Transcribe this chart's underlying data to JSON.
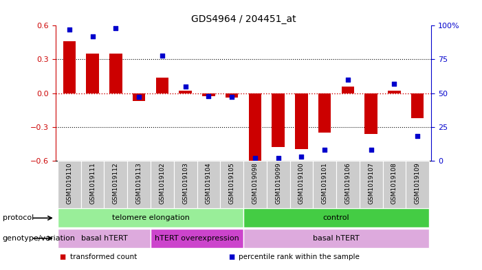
{
  "title": "GDS4964 / 204451_at",
  "samples": [
    "GSM1019110",
    "GSM1019111",
    "GSM1019112",
    "GSM1019113",
    "GSM1019102",
    "GSM1019103",
    "GSM1019104",
    "GSM1019105",
    "GSM1019098",
    "GSM1019099",
    "GSM1019100",
    "GSM1019101",
    "GSM1019106",
    "GSM1019107",
    "GSM1019108",
    "GSM1019109"
  ],
  "bar_values": [
    0.46,
    0.35,
    0.35,
    -0.07,
    0.14,
    0.02,
    -0.03,
    -0.04,
    -0.6,
    -0.48,
    -0.5,
    -0.35,
    0.06,
    -0.36,
    0.02,
    -0.22
  ],
  "percentile_values": [
    97,
    92,
    98,
    47,
    78,
    55,
    48,
    47,
    2,
    2,
    3,
    8,
    60,
    8,
    57,
    18
  ],
  "ylim_left": [
    -0.6,
    0.6
  ],
  "ylim_right": [
    0,
    100
  ],
  "yticks_left": [
    -0.6,
    -0.3,
    0.0,
    0.3,
    0.6
  ],
  "yticks_right": [
    0,
    25,
    50,
    75,
    100
  ],
  "ytick_labels_right": [
    "0",
    "25",
    "50",
    "75",
    "100%"
  ],
  "bar_color": "#cc0000",
  "percentile_color": "#0000cc",
  "zero_line_color": "#cc0000",
  "grid_color": "#000000",
  "protocol_groups": [
    {
      "label": "telomere elongation",
      "start": 0,
      "end": 7,
      "color": "#99ee99"
    },
    {
      "label": "control",
      "start": 8,
      "end": 15,
      "color": "#44cc44"
    }
  ],
  "genotype_groups": [
    {
      "label": "basal hTERT",
      "start": 0,
      "end": 3,
      "color": "#ddaadd"
    },
    {
      "label": "hTERT overexpression",
      "start": 4,
      "end": 7,
      "color": "#cc44cc"
    },
    {
      "label": "basal hTERT",
      "start": 8,
      "end": 15,
      "color": "#ddaadd"
    }
  ],
  "legend_items": [
    {
      "label": "transformed count",
      "color": "#cc0000"
    },
    {
      "label": "percentile rank within the sample",
      "color": "#0000cc"
    }
  ],
  "xlabel_protocol": "protocol",
  "xlabel_genotype": "genotype/variation",
  "bg_color": "#ffffff",
  "tick_bg_color": "#cccccc"
}
